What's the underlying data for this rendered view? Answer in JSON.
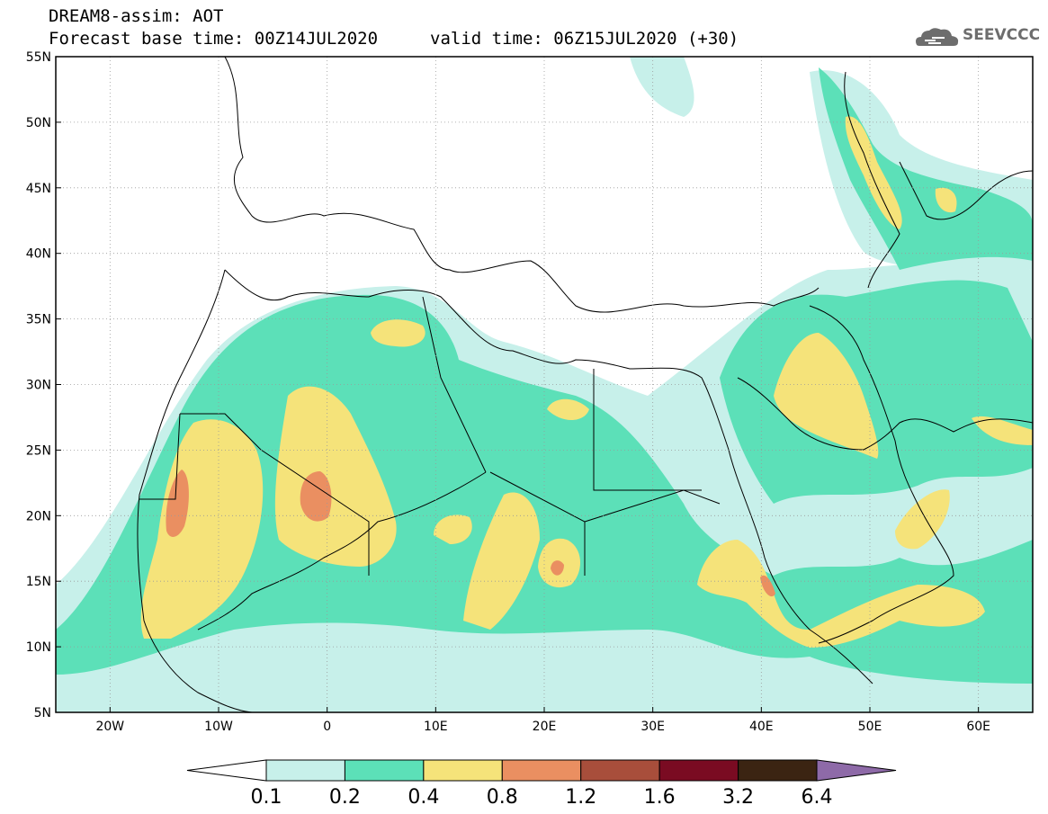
{
  "header": {
    "line1": "DREAM8-assim: AOT",
    "line2": "Forecast base time: 00Z14JUL2020",
    "valid": "valid time: 06Z15JUL2020 (+30)"
  },
  "logo": {
    "text": "SEEVCCC",
    "icon": "cloud-icon",
    "color": "#6d6d6d"
  },
  "map": {
    "lon_range": [
      -25,
      65
    ],
    "lat_range": [
      5,
      55
    ],
    "y_ticks": [
      {
        "v": 55,
        "label": "55N"
      },
      {
        "v": 50,
        "label": "50N"
      },
      {
        "v": 45,
        "label": "45N"
      },
      {
        "v": 40,
        "label": "40N"
      },
      {
        "v": 35,
        "label": "35N"
      },
      {
        "v": 30,
        "label": "30N"
      },
      {
        "v": 25,
        "label": "25N"
      },
      {
        "v": 20,
        "label": "20N"
      },
      {
        "v": 15,
        "label": "15N"
      },
      {
        "v": 10,
        "label": "10N"
      },
      {
        "v": 5,
        "label": "5N"
      }
    ],
    "x_ticks": [
      {
        "v": -20,
        "label": "20W"
      },
      {
        "v": -10,
        "label": "10W"
      },
      {
        "v": 0,
        "label": "0"
      },
      {
        "v": 10,
        "label": "10E"
      },
      {
        "v": 20,
        "label": "20E"
      },
      {
        "v": 30,
        "label": "30E"
      },
      {
        "v": 40,
        "label": "40E"
      },
      {
        "v": 50,
        "label": "50E"
      },
      {
        "v": 60,
        "label": "60E"
      }
    ],
    "grid": true
  },
  "colorbar": {
    "labels": [
      "0.1",
      "0.2",
      "0.4",
      "0.8",
      "1.2",
      "1.6",
      "3.2",
      "6.4"
    ],
    "colors": [
      "#ffffff",
      "#c7f0ea",
      "#5ce0b8",
      "#f5e37a",
      "#ea8f61",
      "#a84e3b",
      "#7a0b22",
      "#3b2412",
      "#8e6aa8"
    ]
  }
}
